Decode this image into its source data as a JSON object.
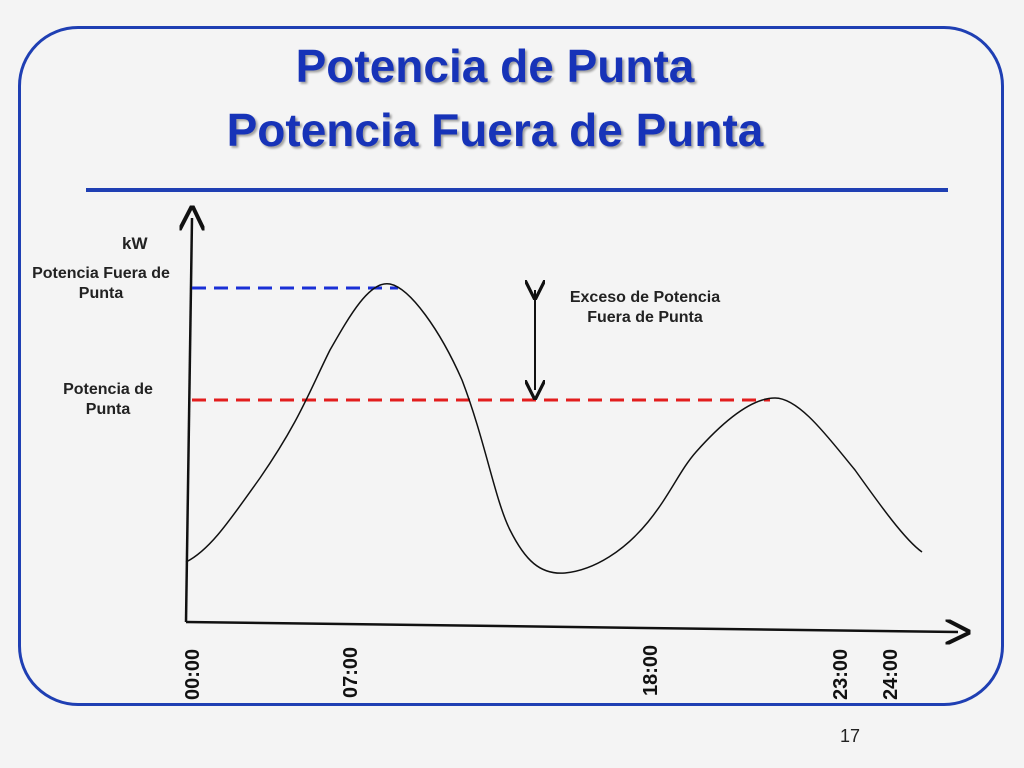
{
  "slide": {
    "title_line1": "Potencia de Punta",
    "title_line2": "Potencia Fuera de Punta",
    "page_number": "17",
    "accent_color": "#1f3fb3"
  },
  "diagram": {
    "y_axis_label": "kW",
    "level_high_label": "Potencia Fuera de Punta",
    "level_high_color": "#1a2fd6",
    "level_low_label": "Potencia de Punta",
    "level_low_color": "#e21d1d",
    "excess_label": "Exceso de Potencia Fuera de Punta",
    "time_ticks": [
      "00:00",
      "07:00",
      "18:00",
      "23:00",
      "24:00"
    ]
  }
}
